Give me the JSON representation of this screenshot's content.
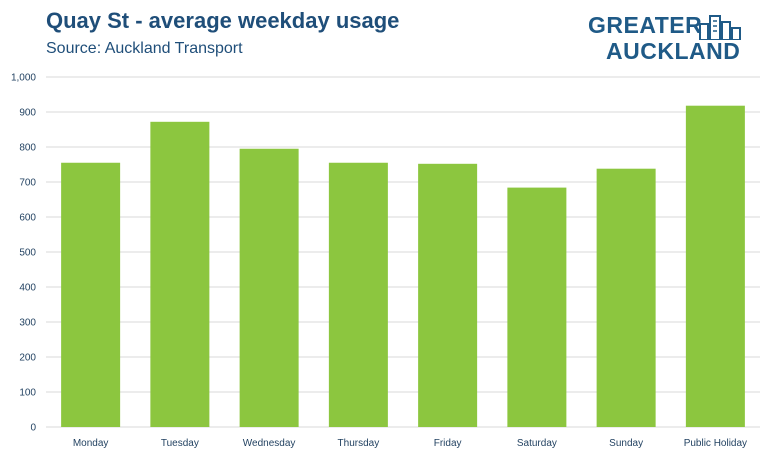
{
  "header": {
    "title": "Quay St - average weekday usage",
    "subtitle": "Source: Auckland Transport"
  },
  "logo": {
    "line1": "GREATER",
    "line2": "AUCKLAND",
    "icon": "city-buildings-icon",
    "color": "#1f5a87"
  },
  "colors": {
    "bar": "#8cc63f",
    "grid": "#d9d9d9",
    "title": "#1f4e79"
  },
  "chart_data": {
    "type": "bar",
    "title": "Quay St - average weekday usage",
    "subtitle": "Source: Auckland Transport",
    "categories": [
      "Monday",
      "Tuesday",
      "Wednesday",
      "Thursday",
      "Friday",
      "Saturday",
      "Sunday",
      "Public Holiday"
    ],
    "values": [
      755,
      872,
      795,
      755,
      752,
      684,
      738,
      918
    ],
    "ylim": [
      0,
      1000
    ],
    "yticks": [
      0,
      100,
      200,
      300,
      400,
      500,
      600,
      700,
      800,
      900,
      1000
    ],
    "ytick_labels": [
      "0",
      "100",
      "200",
      "300",
      "400",
      "500",
      "600",
      "700",
      "800",
      "900",
      "1,000"
    ],
    "xlabel": "",
    "ylabel": "",
    "grid": true,
    "legend": "none"
  }
}
